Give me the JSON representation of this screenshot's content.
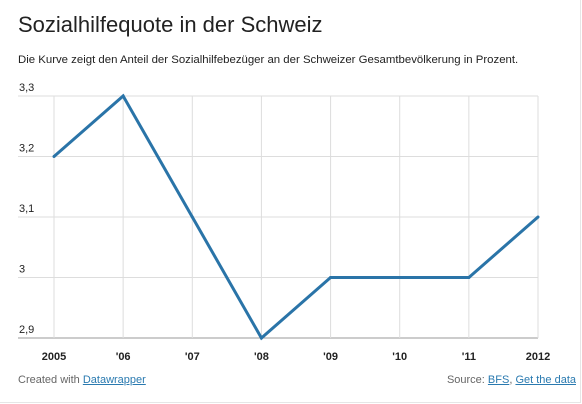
{
  "title": "Sozialhilfequote in der Schweiz",
  "subtitle": "Die Kurve zeigt den Anteil der Sozialhilfebezüger an der Schweizer Gesamtbevölkerung in Prozent.",
  "footer": {
    "created_with": "Created with",
    "tool_link": "Datawrapper",
    "source_label": "Source:",
    "source_link": "BFS",
    "separator": ",",
    "get_data_link": "Get the data"
  },
  "colors": {
    "line": "#2a74a8",
    "grid": "#dddddd",
    "baseline": "#999999"
  },
  "chart_data": {
    "type": "line",
    "categories": [
      "2005",
      "'06",
      "'07",
      "'08",
      "'09",
      "'10",
      "'11",
      "2012"
    ],
    "series": [
      {
        "values": [
          3.2,
          3.3,
          3.1,
          2.9,
          3.0,
          3.0,
          3.0,
          3.1
        ]
      }
    ],
    "y_ticks": [
      "3,3",
      "3,2",
      "3,1",
      "3",
      "2,9"
    ],
    "y_tick_values": [
      3.3,
      3.2,
      3.1,
      3.0,
      2.9
    ],
    "ylim": [
      2.9,
      3.3
    ],
    "grid": true,
    "legend": "none"
  }
}
